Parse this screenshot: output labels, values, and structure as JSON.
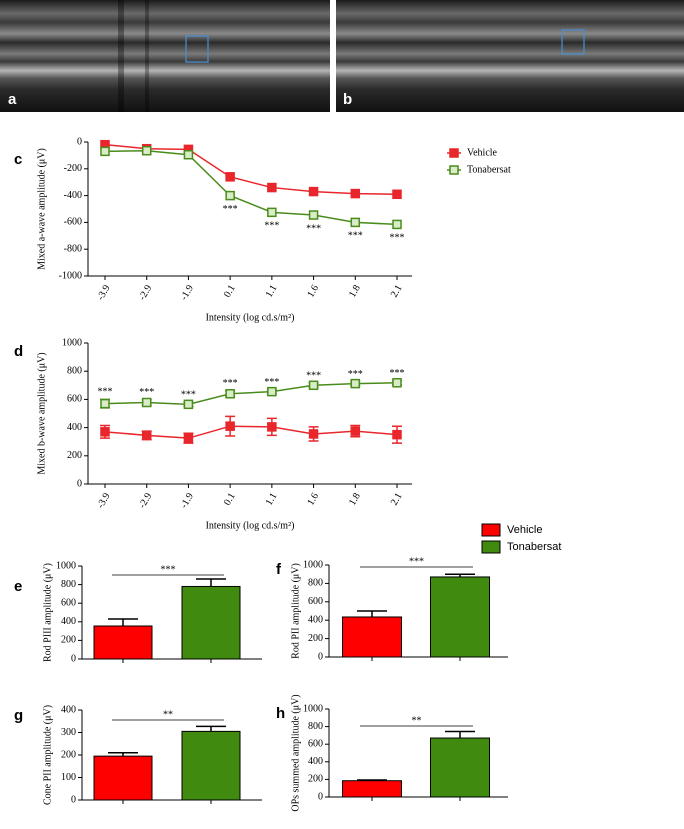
{
  "images": [
    {
      "label": "a"
    },
    {
      "label": "b"
    }
  ],
  "chart_data": [
    {
      "type": "line",
      "panel": "c",
      "ylabel": "Mixed a-wave amplitude (μV)",
      "xlabel": "Intensity (log cd.s/m²)",
      "categories": [
        "-3.9",
        "-2.9",
        "-1.9",
        "0.1",
        "1.1",
        "1.6",
        "1.8",
        "2.1"
      ],
      "ylim": [
        -1000,
        0
      ],
      "yticks": [
        0,
        -200,
        -400,
        -600,
        -800,
        -1000
      ],
      "legend": true,
      "annotation_position": "below",
      "series": [
        {
          "name": "Vehicle",
          "color": "#e8262b",
          "filled": true,
          "values": [
            -20,
            -50,
            -55,
            -260,
            -340,
            -370,
            -385,
            -390
          ]
        },
        {
          "name": "Tonabersat",
          "color": "#4a8c1c",
          "filled": false,
          "values": [
            -70,
            -65,
            -95,
            -400,
            -525,
            -545,
            -600,
            -615
          ],
          "value_annotations": [
            null,
            null,
            null,
            "***",
            "***",
            "***",
            "***",
            "***"
          ]
        }
      ]
    },
    {
      "type": "line",
      "panel": "d",
      "ylabel": "Mixed b-wave amplitude (μV)",
      "xlabel": "Intensity (log cd.s/m²)",
      "categories": [
        "-3.9",
        "-2.9",
        "-1.9",
        "0.1",
        "1.1",
        "1.6",
        "1.8",
        "2.1"
      ],
      "ylim": [
        0,
        1000
      ],
      "yticks": [
        0,
        200,
        400,
        600,
        800,
        1000
      ],
      "annotation_position": "above",
      "series": [
        {
          "color": "#e8262b",
          "filled": true,
          "values": [
            370,
            345,
            325,
            410,
            405,
            355,
            375,
            350
          ],
          "errors": [
            45,
            30,
            35,
            70,
            60,
            50,
            40,
            60
          ]
        },
        {
          "color": "#4a8c1c",
          "filled": false,
          "values": [
            570,
            578,
            565,
            640,
            655,
            700,
            712,
            718
          ],
          "errors": [
            30,
            20,
            15,
            20,
            15,
            15,
            15,
            15
          ],
          "value_annotations": [
            "***",
            "***",
            "***",
            "***",
            "***",
            "***",
            "***",
            "***"
          ]
        }
      ]
    },
    {
      "type": "bar",
      "panel": "e",
      "ylabel": "Rod PIII amplitude (μV)",
      "ylim": [
        0,
        1000
      ],
      "yticks": [
        0,
        200,
        400,
        600,
        800,
        1000
      ],
      "significance": "***",
      "legend": true,
      "series": [
        {
          "name": "Vehicle",
          "color": "#ff0000",
          "values": [
            355
          ],
          "errors": [
            75
          ]
        },
        {
          "name": "Tonabersat",
          "color": "#3f8a0f",
          "values": [
            780
          ],
          "errors": [
            80
          ]
        }
      ]
    },
    {
      "type": "bar",
      "panel": "f",
      "ylabel": "Rod PII amplitude (μV)",
      "ylim": [
        0,
        1000
      ],
      "yticks": [
        0,
        200,
        400,
        600,
        800,
        1000
      ],
      "significance": "***",
      "series": [
        {
          "color": "#ff0000",
          "values": [
            435
          ],
          "errors": [
            65
          ]
        },
        {
          "color": "#3f8a0f",
          "values": [
            870
          ],
          "errors": [
            30
          ]
        }
      ]
    },
    {
      "type": "bar",
      "panel": "g",
      "ylabel": "Cone PII amplitude (μV)",
      "ylim": [
        0,
        400
      ],
      "yticks": [
        0,
        100,
        200,
        300,
        400
      ],
      "significance": "**",
      "series": [
        {
          "color": "#ff0000",
          "values": [
            195
          ],
          "errors": [
            15
          ]
        },
        {
          "color": "#3f8a0f",
          "values": [
            305
          ],
          "errors": [
            22
          ]
        }
      ]
    },
    {
      "type": "bar",
      "panel": "h",
      "ylabel": "OPs summed amplitude (μV)",
      "ylim": [
        0,
        1000
      ],
      "yticks": [
        0,
        200,
        400,
        600,
        800,
        1000
      ],
      "significance": "**",
      "series": [
        {
          "color": "#ff0000",
          "values": [
            185
          ],
          "errors": [
            8
          ]
        },
        {
          "color": "#3f8a0f",
          "values": [
            670
          ],
          "errors": [
            75
          ]
        }
      ]
    }
  ]
}
